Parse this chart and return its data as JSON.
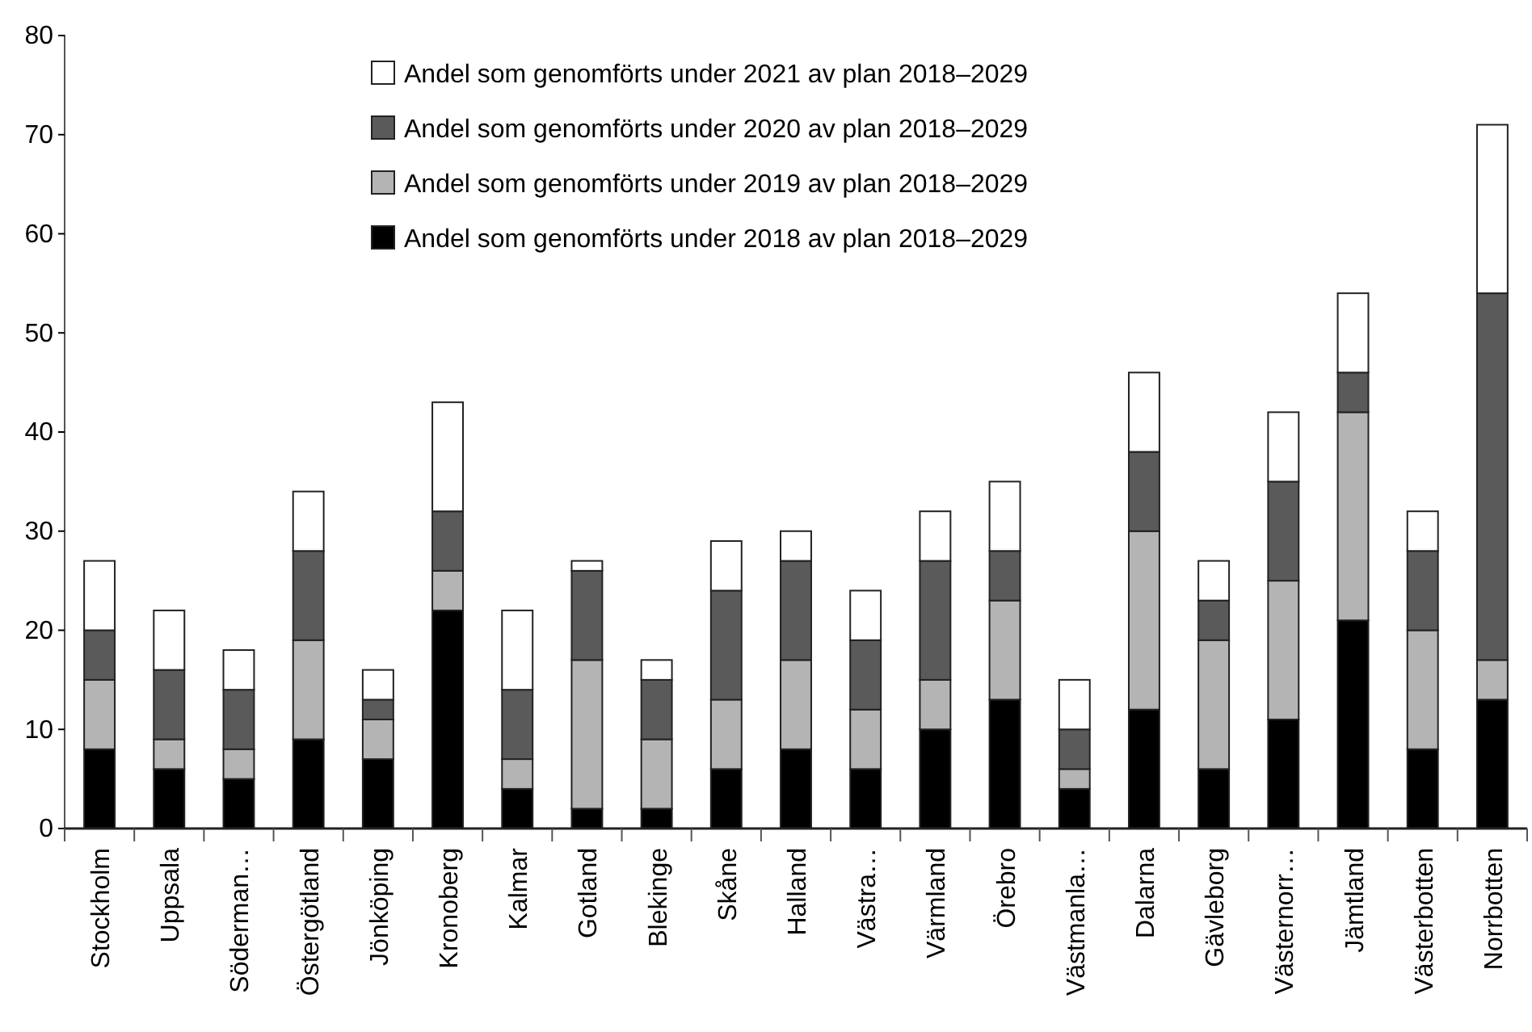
{
  "chart_data": {
    "type": "bar",
    "stacked": true,
    "categories": [
      "Stockholm",
      "Uppsala",
      "Söderman…",
      "Östergötland",
      "Jönköping",
      "Kronoberg",
      "Kalmar",
      "Gotland",
      "Blekinge",
      "Skåne",
      "Halland",
      "Västra…",
      "Värmland",
      "Örebro",
      "Västmanla…",
      "Dalarna",
      "Gävleborg",
      "Västernorr…",
      "Jämtland",
      "Västerbotten",
      "Norrbotten"
    ],
    "series": [
      {
        "name": "Andel som genomförts under 2018 av plan 2018–2029",
        "color": "#000000",
        "values": [
          8,
          6,
          5,
          9,
          7,
          22,
          4,
          2,
          2,
          6,
          8,
          6,
          10,
          13,
          4,
          12,
          6,
          11,
          21,
          8,
          13
        ]
      },
      {
        "name": "Andel som genomförts under 2019 av plan 2018–2029",
        "color": "#b4b4b4",
        "values": [
          7,
          3,
          3,
          10,
          4,
          4,
          3,
          15,
          7,
          7,
          9,
          6,
          5,
          10,
          2,
          18,
          13,
          14,
          21,
          12,
          4
        ]
      },
      {
        "name": "Andel som genomförts under 2020 av plan 2018–2029",
        "color": "#5a5a5a",
        "values": [
          5,
          7,
          6,
          9,
          2,
          6,
          7,
          9,
          6,
          11,
          10,
          7,
          12,
          5,
          4,
          8,
          4,
          10,
          4,
          8,
          37
        ]
      },
      {
        "name": "Andel som genomförts under 2021 av plan 2018–2029",
        "color": "#ffffff",
        "values": [
          7,
          6,
          4,
          6,
          3,
          11,
          8,
          1,
          2,
          5,
          3,
          5,
          5,
          7,
          5,
          8,
          4,
          7,
          8,
          4,
          17
        ]
      }
    ],
    "ylim": [
      0,
      80
    ],
    "yticks": [
      0,
      10,
      20,
      30,
      40,
      50,
      60,
      70,
      80
    ],
    "grid": false,
    "legend": "top"
  }
}
